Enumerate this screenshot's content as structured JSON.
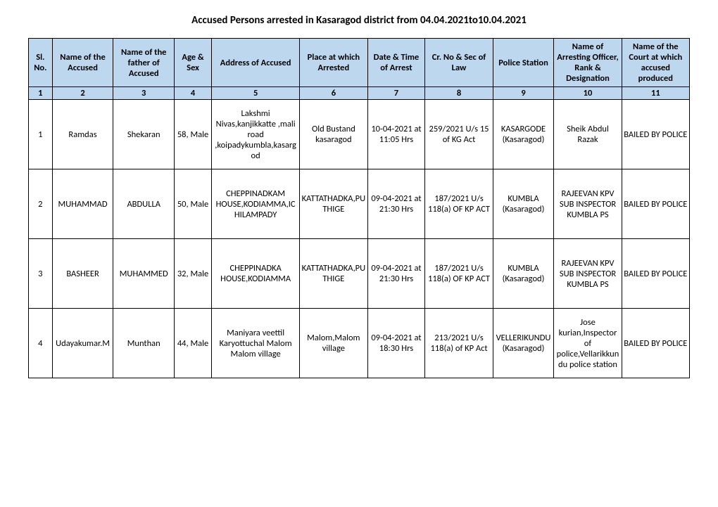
{
  "title": "Accused Persons arrested in  Kasaragod   district from   04.04.2021to10.04.2021",
  "headers": {
    "sl": "Sl. No.",
    "name": "Name of the Accused",
    "father": "Name of the father of Accused",
    "age": "Age & Sex",
    "addr": "Address of Accused",
    "place": "Place at which Arrested",
    "date": "Date & Time of Arrest",
    "crno": "Cr. No & Sec of Law",
    "ps": "Police Station",
    "officer": "Name of Arresting Officer, Rank & Designation",
    "court": "Name of the Court at which accused produced"
  },
  "colnums": [
    "1",
    "2",
    "3",
    "4",
    "5",
    "6",
    "7",
    "8",
    "9",
    "10",
    "11"
  ],
  "rows": [
    {
      "sl": "1",
      "name": "Ramdas",
      "father": "Shekaran",
      "age": "58, Male",
      "addr": "Lakshmi Nivas,kanjikkatte ,mali road ,koipadykumbla,kasargod",
      "place": "Old Bustand kasaragod",
      "date": "10-04-2021 at 11:05 Hrs",
      "crno": "259/2021 U/s 15 of KG Act",
      "ps": "KASARGODE (Kasaragod)",
      "officer": "Sheik Abdul Razak",
      "court": "BAILED BY POLICE"
    },
    {
      "sl": "2",
      "name": "MUHAMMAD",
      "father": "ABDULLA",
      "age": "50, Male",
      "addr": "CHEPPINADKAM HOUSE,KODIAMMA,ICHILAMPADY",
      "place": "KATTATHADKA,PUTHIGE",
      "date": "09-04-2021 at 21:30 Hrs",
      "crno": "187/2021 U/s 118(a) OF KP ACT",
      "ps": "KUMBLA (Kasaragod)",
      "officer": "RAJEEVAN KPV SUB INSPECTOR KUMBLA PS",
      "court": "BAILED BY POLICE"
    },
    {
      "sl": "3",
      "name": "BASHEER",
      "father": "MUHAMMED",
      "age": "32, Male",
      "addr": "CHEPPINADKA HOUSE,KODIAMMA",
      "place": "KATTATHADKA,PUTHIGE",
      "date": "09-04-2021 at 21:30 Hrs",
      "crno": "187/2021 U/s 118(a) OF KP ACT",
      "ps": "KUMBLA (Kasaragod)",
      "officer": "RAJEEVAN KPV SUB INSPECTOR KUMBLA PS",
      "court": "BAILED BY POLICE"
    },
    {
      "sl": "4",
      "name": "Udayakumar.M",
      "father": "Munthan",
      "age": "44, Male",
      "addr": "Maniyara veettil Karyottuchal Malom Malom village",
      "place": "Malom,Malom village",
      "date": "09-04-2021 at 18:30 Hrs",
      "crno": "213/2021 U/s 118(a) of KP Act",
      "ps": "VELLERIKUNDU (Kasaragod)",
      "officer": "Jose kurian,Inspector of police,Vellarikkundu police station",
      "court": "BAILED BY POLICE"
    }
  ]
}
